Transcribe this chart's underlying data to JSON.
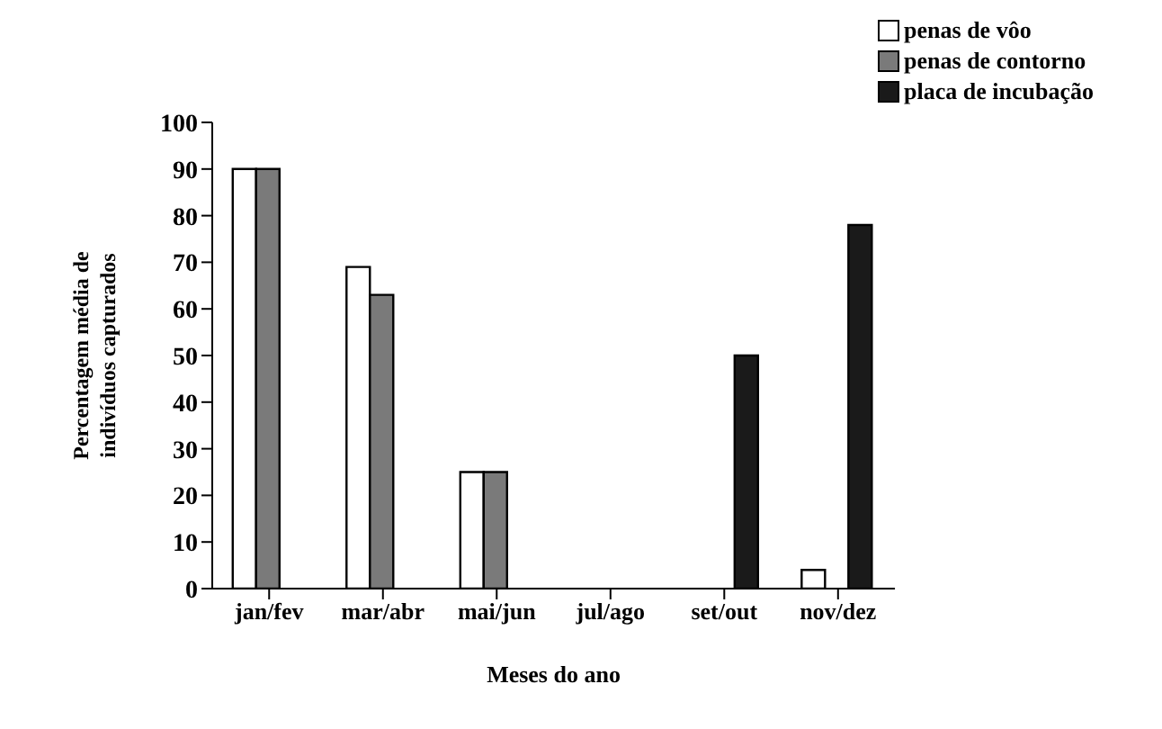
{
  "chart_data": {
    "type": "bar",
    "xlabel": "Meses do ano",
    "ylabel": "Percentagem média de indivíduos capturados",
    "categories": [
      "jan/fev",
      "mar/abr",
      "mai/jun",
      "jul/ago",
      "set/out",
      "nov/dez"
    ],
    "series": [
      {
        "name": "penas de vôo",
        "color": "#ffffff",
        "values": [
          90,
          69,
          25,
          0,
          0,
          4
        ]
      },
      {
        "name": "penas de contorno",
        "color": "#7a7a7a",
        "values": [
          90,
          63,
          25,
          0,
          0,
          0
        ]
      },
      {
        "name": "placa de incubação",
        "color": "#1a1a1a",
        "values": [
          0,
          0,
          0,
          0,
          50,
          78
        ]
      }
    ],
    "ylim": [
      0,
      100
    ],
    "yticks": [
      0,
      10,
      20,
      30,
      40,
      50,
      60,
      70,
      80,
      90,
      100
    ],
    "grid": false,
    "legend": "top right"
  }
}
